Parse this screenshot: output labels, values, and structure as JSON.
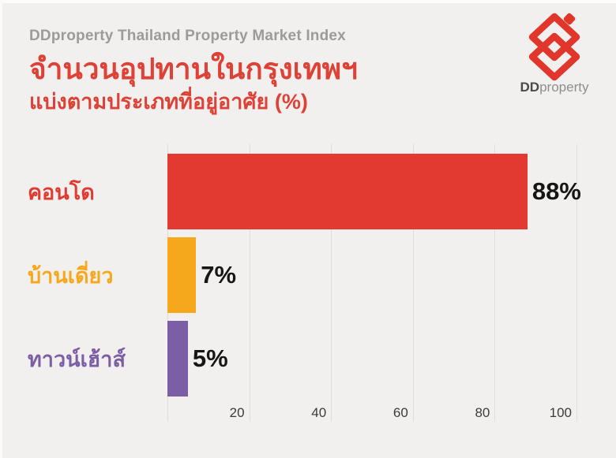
{
  "header": {
    "kicker": "DDproperty Thailand Property Market Index",
    "title": "จำนวนอุปทานในกรุงเทพฯ",
    "subtitle": "แบ่งตามประเภทที่อยู่อาศัย (%)"
  },
  "logo": {
    "bold": "DD",
    "rest": "property",
    "brand_red": "#e1362b"
  },
  "colors": {
    "background": "#f1f0ee",
    "title_red": "#de4237",
    "kicker_gray": "#9c9b99",
    "gridline": "#dddcd9",
    "tick_text": "#3b3b3b",
    "value_text": "#161616"
  },
  "chart_data": {
    "type": "bar",
    "orientation": "horizontal",
    "title": "จำนวนอุปทานในกรุงเทพฯ แบ่งตามประเภทที่อยู่อาศัย (%)",
    "xlabel": "",
    "ylabel": "",
    "categories": [
      "คอนโด",
      "บ้านเดี่ยว",
      "ทาวน์เฮ้าส์"
    ],
    "values": [
      88,
      7,
      5
    ],
    "value_labels": [
      "88%",
      "7%",
      "5%"
    ],
    "bar_colors": [
      "#e23a30",
      "#f6a81c",
      "#7c5ea6"
    ],
    "x_ticks": [
      20,
      40,
      60,
      80,
      100
    ],
    "xlim": [
      0,
      100
    ],
    "grid": true,
    "legend": false
  }
}
